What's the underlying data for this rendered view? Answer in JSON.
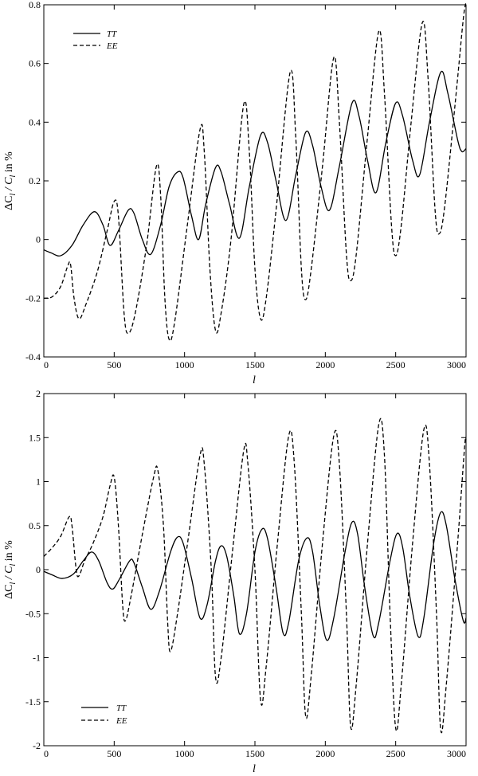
{
  "chart_data": [
    {
      "type": "line",
      "ylabel_parts": [
        "ΔC",
        "l",
        " / C",
        "l",
        "  in %"
      ],
      "xlabel": "l",
      "xlim": [
        0,
        3000
      ],
      "ylim": [
        -0.4,
        0.8
      ],
      "xticks": [
        0,
        500,
        1000,
        1500,
        2000,
        2500,
        3000
      ],
      "yticks": [
        -0.4,
        -0.2,
        0,
        0.2,
        0.4,
        0.6,
        0.8
      ],
      "xtick_labels": [
        "0",
        "500",
        "1000",
        "1500",
        "2000",
        "2500",
        "3000"
      ],
      "ytick_labels": [
        "-0.4",
        "-0.2",
        "0",
        "0.2",
        "0.4",
        "0.6",
        "0.8"
      ],
      "legend_position": "top-left",
      "series": [
        {
          "name": "TT",
          "style": "solid",
          "points": [
            [
              0,
              -0.035
            ],
            [
              50,
              -0.045
            ],
            [
              120,
              -0.055
            ],
            [
              200,
              -0.02
            ],
            [
              280,
              0.05
            ],
            [
              360,
              0.095
            ],
            [
              420,
              0.05
            ],
            [
              470,
              -0.02
            ],
            [
              530,
              0.03
            ],
            [
              600,
              0.1
            ],
            [
              640,
              0.09
            ],
            [
              700,
              0.0
            ],
            [
              760,
              -0.05
            ],
            [
              830,
              0.05
            ],
            [
              890,
              0.18
            ],
            [
              950,
              0.23
            ],
            [
              990,
              0.21
            ],
            [
              1050,
              0.08
            ],
            [
              1100,
              0.0
            ],
            [
              1150,
              0.12
            ],
            [
              1220,
              0.245
            ],
            [
              1260,
              0.23
            ],
            [
              1320,
              0.12
            ],
            [
              1390,
              0.005
            ],
            [
              1460,
              0.18
            ],
            [
              1540,
              0.355
            ],
            [
              1590,
              0.33
            ],
            [
              1650,
              0.2
            ],
            [
              1720,
              0.065
            ],
            [
              1790,
              0.22
            ],
            [
              1860,
              0.365
            ],
            [
              1910,
              0.32
            ],
            [
              1970,
              0.18
            ],
            [
              2030,
              0.1
            ],
            [
              2100,
              0.25
            ],
            [
              2190,
              0.465
            ],
            [
              2240,
              0.42
            ],
            [
              2300,
              0.27
            ],
            [
              2360,
              0.16
            ],
            [
              2430,
              0.33
            ],
            [
              2500,
              0.465
            ],
            [
              2550,
              0.42
            ],
            [
              2620,
              0.27
            ],
            [
              2670,
              0.22
            ],
            [
              2740,
              0.4
            ],
            [
              2820,
              0.57
            ],
            [
              2870,
              0.5
            ],
            [
              2940,
              0.34
            ],
            [
              2970,
              0.3
            ],
            [
              3000,
              0.31
            ]
          ]
        },
        {
          "name": "EE",
          "style": "dashed",
          "points": [
            [
              0,
              -0.2
            ],
            [
              60,
              -0.195
            ],
            [
              120,
              -0.16
            ],
            [
              170,
              -0.09
            ],
            [
              190,
              -0.085
            ],
            [
              215,
              -0.2
            ],
            [
              250,
              -0.27
            ],
            [
              300,
              -0.22
            ],
            [
              380,
              -0.11
            ],
            [
              450,
              0.03
            ],
            [
              500,
              0.13
            ],
            [
              530,
              0.08
            ],
            [
              570,
              -0.25
            ],
            [
              600,
              -0.32
            ],
            [
              650,
              -0.25
            ],
            [
              730,
              -0.02
            ],
            [
              800,
              0.25
            ],
            [
              830,
              0.15
            ],
            [
              860,
              -0.2
            ],
            [
              890,
              -0.34
            ],
            [
              930,
              -0.28
            ],
            [
              1020,
              0.05
            ],
            [
              1110,
              0.375
            ],
            [
              1140,
              0.3
            ],
            [
              1180,
              -0.1
            ],
            [
              1220,
              -0.31
            ],
            [
              1260,
              -0.25
            ],
            [
              1330,
              0.0
            ],
            [
              1420,
              0.46
            ],
            [
              1460,
              0.3
            ],
            [
              1500,
              -0.1
            ],
            [
              1540,
              -0.27
            ],
            [
              1580,
              -0.2
            ],
            [
              1650,
              0.1
            ],
            [
              1750,
              0.57
            ],
            [
              1790,
              0.35
            ],
            [
              1830,
              -0.1
            ],
            [
              1860,
              -0.205
            ],
            [
              1900,
              -0.1
            ],
            [
              1980,
              0.25
            ],
            [
              2060,
              0.62
            ],
            [
              2100,
              0.4
            ],
            [
              2150,
              -0.05
            ],
            [
              2180,
              -0.14
            ],
            [
              2220,
              -0.05
            ],
            [
              2300,
              0.35
            ],
            [
              2380,
              0.71
            ],
            [
              2420,
              0.5
            ],
            [
              2470,
              0.05
            ],
            [
              2500,
              -0.055
            ],
            [
              2540,
              0.05
            ],
            [
              2610,
              0.4
            ],
            [
              2690,
              0.74
            ],
            [
              2730,
              0.55
            ],
            [
              2780,
              0.1
            ],
            [
              2810,
              0.02
            ],
            [
              2850,
              0.12
            ],
            [
              2930,
              0.5
            ],
            [
              2980,
              0.75
            ],
            [
              3000,
              0.81
            ]
          ]
        }
      ]
    },
    {
      "type": "line",
      "ylabel_parts": [
        "ΔC",
        "l",
        " / C",
        "l",
        "  in %"
      ],
      "xlabel": "l",
      "xlim": [
        0,
        3000
      ],
      "ylim": [
        -2,
        2
      ],
      "xticks": [
        0,
        500,
        1000,
        1500,
        2000,
        2500,
        3000
      ],
      "yticks": [
        -2,
        -1.5,
        -1,
        -0.5,
        0,
        0.5,
        1,
        1.5,
        2
      ],
      "xtick_labels": [
        "0",
        "500",
        "1000",
        "1500",
        "2000",
        "2500",
        "3000"
      ],
      "ytick_labels": [
        "-2",
        "-1.5",
        "-1",
        "-0.5",
        "0",
        "0.5",
        "1",
        "1.5",
        "2"
      ],
      "legend_position": "bottom-left",
      "series": [
        {
          "name": "TT",
          "style": "solid",
          "points": [
            [
              0,
              -0.02
            ],
            [
              60,
              -0.06
            ],
            [
              130,
              -0.1
            ],
            [
              210,
              -0.05
            ],
            [
              280,
              0.1
            ],
            [
              340,
              0.2
            ],
            [
              390,
              0.1
            ],
            [
              450,
              -0.15
            ],
            [
              490,
              -0.22
            ],
            [
              540,
              -0.1
            ],
            [
              610,
              0.1
            ],
            [
              640,
              0.08
            ],
            [
              700,
              -0.2
            ],
            [
              760,
              -0.45
            ],
            [
              820,
              -0.25
            ],
            [
              900,
              0.2
            ],
            [
              950,
              0.37
            ],
            [
              990,
              0.3
            ],
            [
              1050,
              -0.1
            ],
            [
              1110,
              -0.55
            ],
            [
              1160,
              -0.4
            ],
            [
              1220,
              0.1
            ],
            [
              1260,
              0.27
            ],
            [
              1300,
              0.15
            ],
            [
              1350,
              -0.3
            ],
            [
              1390,
              -0.73
            ],
            [
              1440,
              -0.5
            ],
            [
              1500,
              0.2
            ],
            [
              1550,
              0.46
            ],
            [
              1590,
              0.35
            ],
            [
              1650,
              -0.2
            ],
            [
              1700,
              -0.72
            ],
            [
              1740,
              -0.6
            ],
            [
              1810,
              0.1
            ],
            [
              1870,
              0.36
            ],
            [
              1910,
              0.2
            ],
            [
              1960,
              -0.4
            ],
            [
              2010,
              -0.8
            ],
            [
              2060,
              -0.55
            ],
            [
              2140,
              0.2
            ],
            [
              2190,
              0.54
            ],
            [
              2230,
              0.4
            ],
            [
              2280,
              -0.2
            ],
            [
              2340,
              -0.75
            ],
            [
              2380,
              -0.6
            ],
            [
              2460,
              0.1
            ],
            [
              2510,
              0.41
            ],
            [
              2550,
              0.25
            ],
            [
              2600,
              -0.3
            ],
            [
              2660,
              -0.76
            ],
            [
              2700,
              -0.55
            ],
            [
              2770,
              0.3
            ],
            [
              2820,
              0.65
            ],
            [
              2860,
              0.5
            ],
            [
              2920,
              -0.1
            ],
            [
              2980,
              -0.58
            ],
            [
              3000,
              -0.55
            ]
          ]
        },
        {
          "name": "EE",
          "style": "dashed",
          "points": [
            [
              0,
              0.15
            ],
            [
              60,
              0.25
            ],
            [
              120,
              0.38
            ],
            [
              180,
              0.6
            ],
            [
              200,
              0.5
            ],
            [
              230,
              0.0
            ],
            [
              250,
              -0.07
            ],
            [
              290,
              0.1
            ],
            [
              350,
              0.3
            ],
            [
              420,
              0.6
            ],
            [
              470,
              0.95
            ],
            [
              500,
              1.05
            ],
            [
              530,
              0.5
            ],
            [
              560,
              -0.4
            ],
            [
              580,
              -0.58
            ],
            [
              620,
              -0.3
            ],
            [
              700,
              0.4
            ],
            [
              780,
              1.05
            ],
            [
              810,
              1.13
            ],
            [
              850,
              0.5
            ],
            [
              880,
              -0.6
            ],
            [
              900,
              -0.93
            ],
            [
              950,
              -0.5
            ],
            [
              1030,
              0.4
            ],
            [
              1110,
              1.3
            ],
            [
              1140,
              1.2
            ],
            [
              1190,
              0.0
            ],
            [
              1220,
              -1.22
            ],
            [
              1260,
              -1.0
            ],
            [
              1340,
              0.2
            ],
            [
              1420,
              1.35
            ],
            [
              1450,
              1.2
            ],
            [
              1500,
              0.0
            ],
            [
              1540,
              -1.48
            ],
            [
              1580,
              -1.1
            ],
            [
              1660,
              0.3
            ],
            [
              1740,
              1.52
            ],
            [
              1780,
              1.2
            ],
            [
              1830,
              -0.5
            ],
            [
              1860,
              -1.66
            ],
            [
              1900,
              -1.2
            ],
            [
              1980,
              0.3
            ],
            [
              2060,
              1.52
            ],
            [
              2100,
              1.2
            ],
            [
              2150,
              -0.5
            ],
            [
              2180,
              -1.78
            ],
            [
              2220,
              -1.3
            ],
            [
              2300,
              0.3
            ],
            [
              2380,
              1.65
            ],
            [
              2420,
              1.3
            ],
            [
              2460,
              -0.5
            ],
            [
              2500,
              -1.8
            ],
            [
              2540,
              -1.3
            ],
            [
              2620,
              0.3
            ],
            [
              2700,
              1.59
            ],
            [
              2740,
              1.2
            ],
            [
              2790,
              -0.5
            ],
            [
              2820,
              -1.82
            ],
            [
              2860,
              -1.3
            ],
            [
              2940,
              0.3
            ],
            [
              2990,
              1.4
            ],
            [
              3000,
              1.48
            ]
          ]
        }
      ]
    }
  ]
}
